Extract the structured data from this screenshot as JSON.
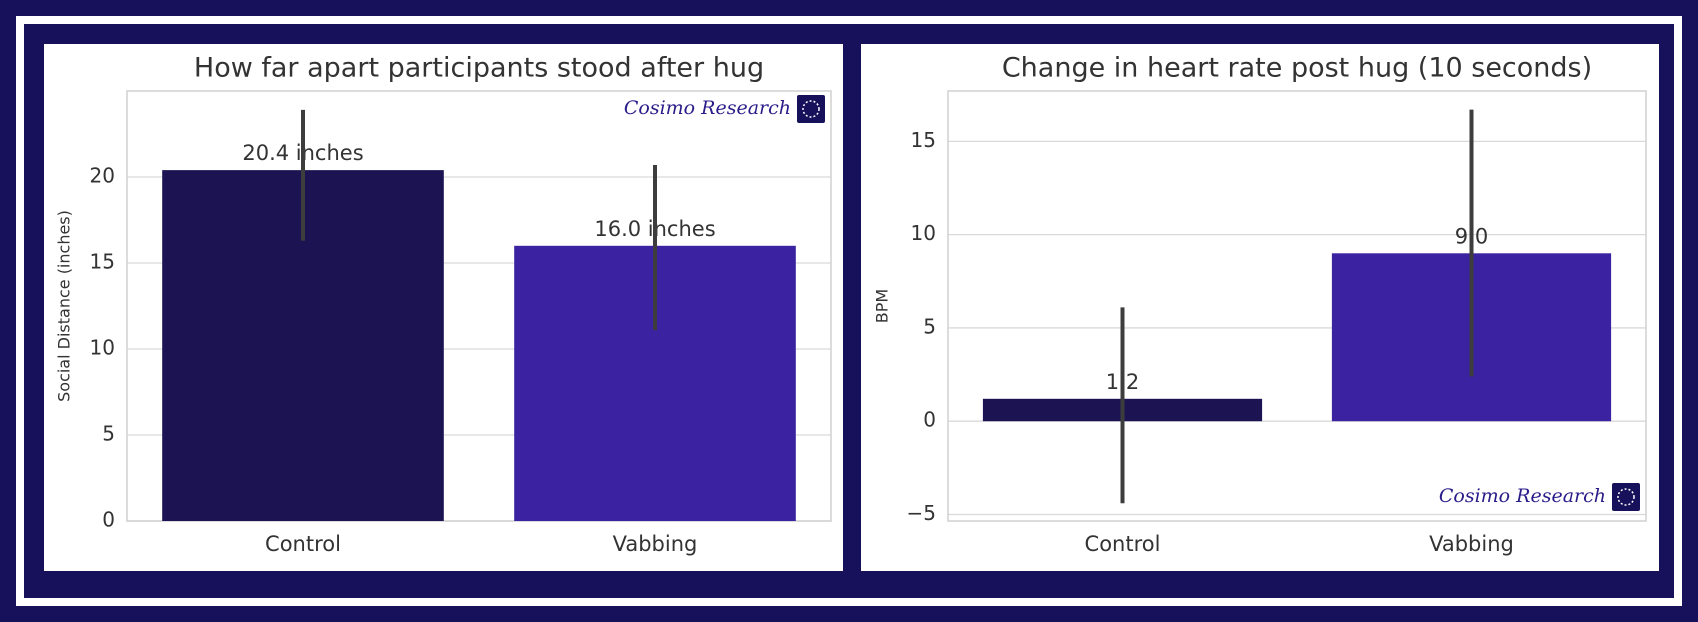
{
  "chart_data": [
    {
      "type": "bar",
      "title": "How far apart participants stood after hug",
      "y_label": "Social Distance (inches)",
      "categories": [
        "Control",
        "Vabbing"
      ],
      "values": [
        20.4,
        16.0
      ],
      "value_labels": [
        "20.4 inches",
        "16.0 inches"
      ],
      "error_low": [
        16.3,
        11.1
      ],
      "error_high": [
        23.9,
        20.7
      ],
      "colors": [
        "#1c1452",
        "#3a22a0"
      ],
      "ylim": [
        0,
        25
      ],
      "yticks": [
        0,
        5,
        10,
        15,
        20
      ],
      "grid": true,
      "watermark": "Cosimo Research",
      "watermark_position": "upper right"
    },
    {
      "type": "bar",
      "title": "Change in heart rate post hug (10 seconds)",
      "y_label": "BPM",
      "categories": [
        "Control",
        "Vabbing"
      ],
      "values": [
        1.2,
        9
      ],
      "value_labels": [
        "1.2",
        "9.0"
      ],
      "error_low": [
        -4.4,
        2.4
      ],
      "error_high": [
        6.1,
        16.7
      ],
      "colors": [
        "#1c1452",
        "#3a22a0"
      ],
      "ylim": [
        -5.35,
        17.7
      ],
      "yticks": [
        {
          "value": -5,
          "label": "−5"
        },
        0,
        5,
        10,
        15
      ],
      "grid": true,
      "watermark": "Cosimo Research",
      "watermark_position": "lower right"
    }
  ]
}
